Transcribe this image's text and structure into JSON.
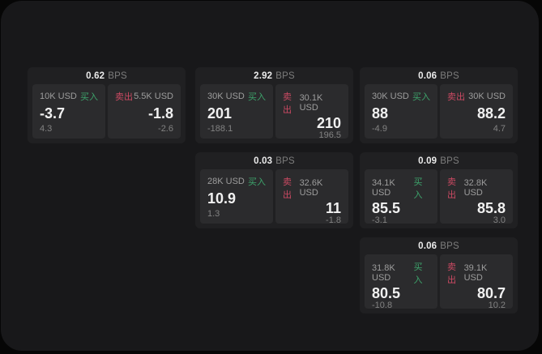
{
  "labels": {
    "bps_unit": "BPS",
    "buy": "买入",
    "sell": "卖出"
  },
  "colors": {
    "buy_green": "#3da36b",
    "sell_red": "#cc4a63",
    "page_bg": "#060606",
    "frame_bg": "#18181a",
    "card_bg": "#202022",
    "tile_bg": "#2b2b2d"
  },
  "cards": [
    {
      "spread_bps": "0.62",
      "buy": {
        "amount": "10K USD",
        "price": "-3.7",
        "delta": "4.3"
      },
      "sell": {
        "amount": "5.5K USD",
        "price": "-1.8",
        "delta": "-2.6"
      }
    },
    {
      "spread_bps": "2.92",
      "buy": {
        "amount": "30K USD",
        "price": "201",
        "delta": "-188.1"
      },
      "sell": {
        "amount": "30.1K USD",
        "price": "210",
        "delta": "196.5"
      }
    },
    {
      "spread_bps": "0.06",
      "buy": {
        "amount": "30K USD",
        "price": "88",
        "delta": "-4.9"
      },
      "sell": {
        "amount": "30K USD",
        "price": "88.2",
        "delta": "4.7"
      }
    },
    {
      "spread_bps": "0.03",
      "buy": {
        "amount": "28K USD",
        "price": "10.9",
        "delta": "1.3"
      },
      "sell": {
        "amount": "32.6K USD",
        "price": "11",
        "delta": "-1.8"
      }
    },
    {
      "spread_bps": "0.09",
      "buy": {
        "amount": "34.1K USD",
        "price": "85.5",
        "delta": "-3.1"
      },
      "sell": {
        "amount": "32.8K USD",
        "price": "85.8",
        "delta": "3.0"
      }
    },
    {
      "spread_bps": "0.06",
      "buy": {
        "amount": "31.8K USD",
        "price": "80.5",
        "delta": "-10.8"
      },
      "sell": {
        "amount": "39.1K USD",
        "price": "80.7",
        "delta": "10.2"
      }
    }
  ]
}
